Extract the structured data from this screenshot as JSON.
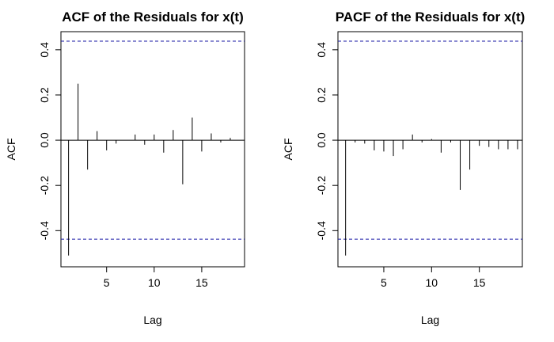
{
  "chart_data": [
    {
      "type": "bar",
      "title": "ACF of the Residuals for x(t)",
      "xlabel": "Lag",
      "ylabel": "ACF",
      "xlim": [
        0.2,
        19.5
      ],
      "ylim": [
        -0.56,
        0.48
      ],
      "xticks": [
        5,
        10,
        15
      ],
      "yticks": [
        -0.4,
        -0.2,
        0.0,
        0.2,
        0.4
      ],
      "ytick_labels": [
        "-0.4",
        "-0.2",
        "0.0",
        "0.2",
        "0.4"
      ],
      "grid": false,
      "confidence_band": 0.438,
      "colors": {
        "bars": "#000000",
        "band": "#1a1aa6",
        "zero": "#000000"
      },
      "lags": [
        1,
        2,
        3,
        4,
        5,
        6,
        7,
        8,
        9,
        10,
        11,
        12,
        13,
        14,
        15,
        16,
        17,
        18
      ],
      "values": [
        -0.51,
        0.25,
        -0.13,
        0.04,
        -0.045,
        -0.015,
        0.0,
        0.025,
        -0.02,
        0.025,
        -0.055,
        0.045,
        -0.195,
        0.1,
        -0.05,
        0.03,
        -0.01,
        0.01
      ]
    },
    {
      "type": "bar",
      "title": "PACF of the Residuals for x(t)",
      "xlabel": "Lag",
      "ylabel": "ACF",
      "xlim": [
        0.2,
        19.5
      ],
      "ylim": [
        -0.56,
        0.48
      ],
      "xticks": [
        5,
        10,
        15
      ],
      "yticks": [
        -0.4,
        -0.2,
        0.0,
        0.2,
        0.4
      ],
      "ytick_labels": [
        "-0.4",
        "-0.2",
        "0.0",
        "0.2",
        "0.4"
      ],
      "grid": false,
      "confidence_band": 0.438,
      "colors": {
        "bars": "#000000",
        "band": "#1a1aa6",
        "zero": "#000000"
      },
      "lags": [
        1,
        2,
        3,
        4,
        5,
        6,
        7,
        8,
        9,
        10,
        11,
        12,
        13,
        14,
        15,
        16,
        17,
        18,
        19
      ],
      "values": [
        -0.51,
        -0.01,
        -0.015,
        -0.045,
        -0.05,
        -0.07,
        -0.04,
        0.025,
        -0.01,
        0.005,
        -0.055,
        -0.01,
        -0.22,
        -0.13,
        -0.025,
        -0.03,
        -0.04,
        -0.04,
        -0.04
      ]
    }
  ]
}
